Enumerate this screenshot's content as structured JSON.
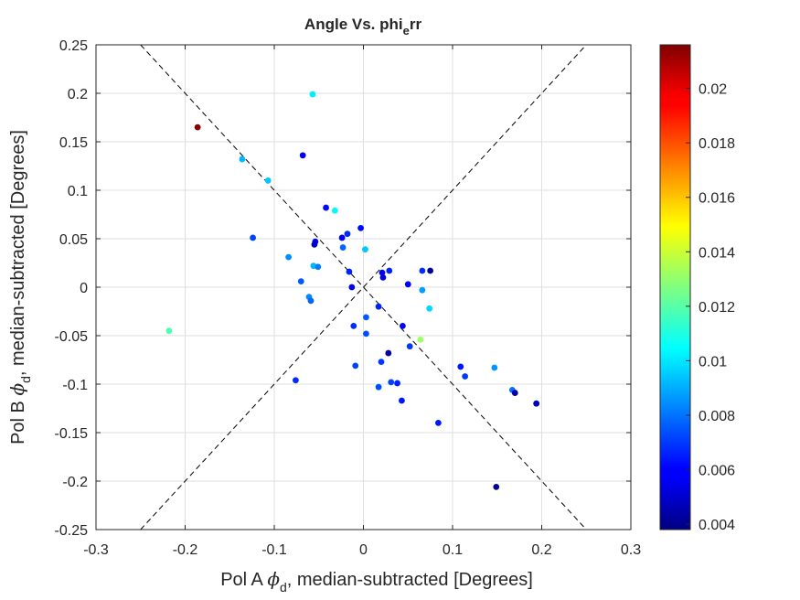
{
  "chart_data": {
    "type": "scatter",
    "title": {
      "base": "Angle Vs. phi",
      "sub": "e",
      "tail": "rr"
    },
    "xlabel": {
      "pre": "Pol A ",
      "phi": "ϕ",
      "sub": "d",
      "post": ", median-subtracted [Degrees]"
    },
    "ylabel": {
      "pre": "Pol B ",
      "phi": "ϕ",
      "sub": "d",
      "post": ", median-subtracted [Degrees]"
    },
    "xlim": [
      -0.3,
      0.3
    ],
    "ylim": [
      -0.25,
      0.25
    ],
    "xticks": [
      -0.3,
      -0.2,
      -0.1,
      0,
      0.1,
      0.2,
      0.3
    ],
    "xtick_labels": [
      "-0.3",
      "-0.2",
      "-0.1",
      "0",
      "0.1",
      "0.2",
      "0.3"
    ],
    "yticks": [
      -0.25,
      -0.2,
      -0.15,
      -0.1,
      -0.05,
      0,
      0.05,
      0.1,
      0.15,
      0.2,
      0.25
    ],
    "ytick_labels": [
      "-0.25",
      "-0.2",
      "-0.15",
      "-0.1",
      "-0.05",
      "0",
      "0.05",
      "0.1",
      "0.15",
      "0.2",
      "0.25"
    ],
    "grid": true,
    "colormap": "jet",
    "colorbar": {
      "clim": [
        0.0038,
        0.0216
      ],
      "ticks": [
        0.004,
        0.006,
        0.008,
        0.01,
        0.012,
        0.014,
        0.016,
        0.018,
        0.02
      ],
      "tick_labels": [
        "0.004",
        "0.006",
        "0.008",
        "0.01",
        "0.012",
        "0.014",
        "0.016",
        "0.018",
        "0.02"
      ]
    },
    "reference_lines": [
      {
        "x": [
          -0.25,
          0.25
        ],
        "y": [
          -0.25,
          0.25
        ],
        "style": "dashed",
        "color": "#000000"
      },
      {
        "x": [
          -0.25,
          0.25
        ],
        "y": [
          0.25,
          -0.25
        ],
        "style": "dashed",
        "color": "#000000"
      }
    ],
    "points": [
      {
        "x": -0.186,
        "y": 0.165,
        "c": 0.0215
      },
      {
        "x": -0.057,
        "y": 0.199,
        "c": 0.0102
      },
      {
        "x": -0.136,
        "y": 0.132,
        "c": 0.0092
      },
      {
        "x": -0.107,
        "y": 0.11,
        "c": 0.0095
      },
      {
        "x": -0.068,
        "y": 0.136,
        "c": 0.0058
      },
      {
        "x": -0.042,
        "y": 0.082,
        "c": 0.0062
      },
      {
        "x": -0.032,
        "y": 0.079,
        "c": 0.0104
      },
      {
        "x": -0.003,
        "y": 0.061,
        "c": 0.0062
      },
      {
        "x": -0.018,
        "y": 0.055,
        "c": 0.0068
      },
      {
        "x": -0.024,
        "y": 0.051,
        "c": 0.006
      },
      {
        "x": -0.054,
        "y": 0.047,
        "c": 0.0058
      },
      {
        "x": -0.055,
        "y": 0.044,
        "c": 0.005
      },
      {
        "x": -0.124,
        "y": 0.051,
        "c": 0.0072
      },
      {
        "x": -0.023,
        "y": 0.041,
        "c": 0.0078
      },
      {
        "x": 0.002,
        "y": 0.039,
        "c": 0.0095
      },
      {
        "x": -0.084,
        "y": 0.031,
        "c": 0.0085
      },
      {
        "x": -0.056,
        "y": 0.022,
        "c": 0.0092
      },
      {
        "x": -0.051,
        "y": 0.021,
        "c": 0.0082
      },
      {
        "x": -0.016,
        "y": 0.016,
        "c": 0.0066
      },
      {
        "x": 0.021,
        "y": 0.015,
        "c": 0.0058
      },
      {
        "x": 0.022,
        "y": 0.01,
        "c": 0.0054
      },
      {
        "x": 0.029,
        "y": 0.017,
        "c": 0.0066
      },
      {
        "x": 0.066,
        "y": 0.017,
        "c": 0.0068
      },
      {
        "x": 0.075,
        "y": 0.017,
        "c": 0.0042
      },
      {
        "x": -0.07,
        "y": 0.006,
        "c": 0.0076
      },
      {
        "x": 0.05,
        "y": 0.003,
        "c": 0.006
      },
      {
        "x": -0.013,
        "y": 0.0,
        "c": 0.0056
      },
      {
        "x": 0.066,
        "y": -0.003,
        "c": 0.0088
      },
      {
        "x": -0.061,
        "y": -0.01,
        "c": 0.0084
      },
      {
        "x": -0.059,
        "y": -0.014,
        "c": 0.0078
      },
      {
        "x": 0.017,
        "y": -0.02,
        "c": 0.0066
      },
      {
        "x": 0.074,
        "y": -0.022,
        "c": 0.0098
      },
      {
        "x": 0.003,
        "y": -0.031,
        "c": 0.0076
      },
      {
        "x": -0.011,
        "y": -0.04,
        "c": 0.0068
      },
      {
        "x": 0.044,
        "y": -0.04,
        "c": 0.006
      },
      {
        "x": 0.003,
        "y": -0.048,
        "c": 0.0074
      },
      {
        "x": 0.064,
        "y": -0.054,
        "c": 0.0132
      },
      {
        "x": 0.052,
        "y": -0.061,
        "c": 0.007
      },
      {
        "x": -0.218,
        "y": -0.045,
        "c": 0.0118
      },
      {
        "x": 0.028,
        "y": -0.068,
        "c": 0.0044
      },
      {
        "x": 0.02,
        "y": -0.077,
        "c": 0.007
      },
      {
        "x": -0.009,
        "y": -0.081,
        "c": 0.0072
      },
      {
        "x": 0.109,
        "y": -0.082,
        "c": 0.0064
      },
      {
        "x": 0.147,
        "y": -0.083,
        "c": 0.0086
      },
      {
        "x": 0.114,
        "y": -0.092,
        "c": 0.007
      },
      {
        "x": -0.076,
        "y": -0.096,
        "c": 0.0068
      },
      {
        "x": 0.031,
        "y": -0.098,
        "c": 0.0072
      },
      {
        "x": 0.038,
        "y": -0.099,
        "c": 0.0066
      },
      {
        "x": 0.017,
        "y": -0.103,
        "c": 0.0074
      },
      {
        "x": 0.167,
        "y": -0.106,
        "c": 0.008
      },
      {
        "x": 0.17,
        "y": -0.109,
        "c": 0.0046
      },
      {
        "x": 0.043,
        "y": -0.117,
        "c": 0.0064
      },
      {
        "x": 0.194,
        "y": -0.12,
        "c": 0.0048
      },
      {
        "x": 0.084,
        "y": -0.14,
        "c": 0.0064
      },
      {
        "x": 0.149,
        "y": -0.206,
        "c": 0.0042
      }
    ]
  }
}
